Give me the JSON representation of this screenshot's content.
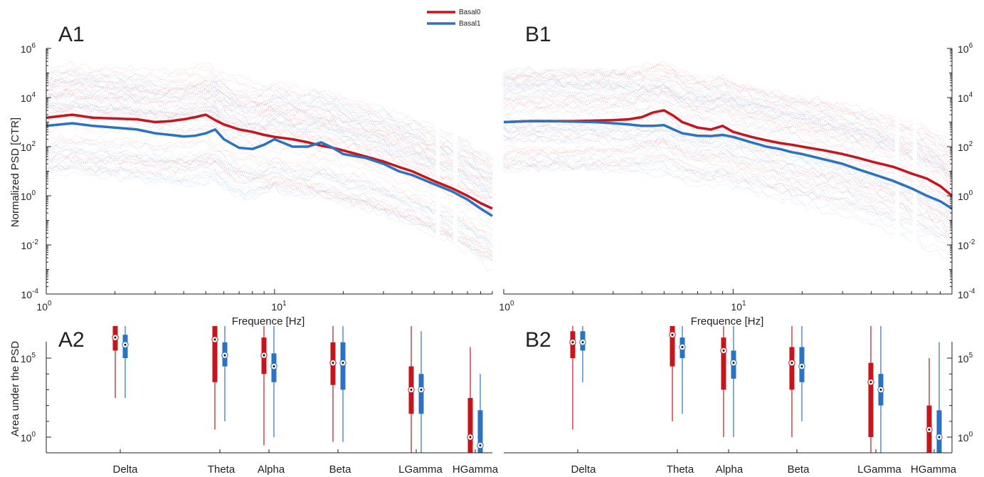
{
  "legend": [
    {
      "name": "Basal0",
      "color": "#c4161c"
    },
    {
      "name": "Basal1",
      "color": "#2b72c0"
    }
  ],
  "panels": {
    "A1": "A1",
    "B1": "B1",
    "A2": "A2",
    "B2": "B2"
  },
  "labels": {
    "psd_ylabel": "Normalized PSD [CTR]",
    "xlabel": "Frequence [Hz]",
    "area_ylabel": "Area under the PSD"
  },
  "ticks": {
    "psd_y": [
      {
        "base": "10",
        "exp": "6"
      },
      {
        "base": "10",
        "exp": "4"
      },
      {
        "base": "10",
        "exp": "2"
      },
      {
        "base": "10",
        "exp": "0"
      },
      {
        "base": "10",
        "exp": "-2"
      },
      {
        "base": "10",
        "exp": "-4"
      }
    ],
    "psd_x": [
      {
        "base": "10",
        "exp": "0"
      },
      {
        "base": "10",
        "exp": "1"
      }
    ],
    "area_y": [
      {
        "base": "10",
        "exp": "5"
      },
      {
        "base": "10",
        "exp": "0"
      }
    ]
  },
  "colors": {
    "basal0": "#c4161c",
    "basal1": "#2b72c0",
    "basal0_light": "#f2a0a0",
    "basal1_light": "#9fc0e8"
  },
  "chart_data": [
    {
      "panel": "A1",
      "type": "line",
      "xlabel": "Frequence [Hz]",
      "ylabel": "Normalized PSD [CTR]",
      "xscale": "log",
      "yscale": "log",
      "xlim": [
        1,
        90
      ],
      "ylim": [
        0.0001,
        1000000
      ],
      "legend_position": "top-center",
      "series": [
        {
          "name": "Basal0",
          "x": [
            1,
            1.3,
            1.6,
            2,
            2.5,
            3,
            3.5,
            4,
            4.5,
            5,
            5.5,
            6,
            7,
            8,
            9,
            10,
            12,
            14,
            16,
            18,
            20,
            25,
            30,
            35,
            40,
            50,
            60,
            70,
            80,
            90
          ],
          "y": [
            1500,
            2000,
            1500,
            1400,
            1300,
            1000,
            1100,
            1300,
            1600,
            2000,
            1200,
            800,
            500,
            400,
            300,
            250,
            200,
            150,
            110,
            90,
            70,
            40,
            25,
            15,
            10,
            4,
            2,
            1,
            0.5,
            0.3
          ]
        },
        {
          "name": "Basal1",
          "x": [
            1,
            1.3,
            1.6,
            2,
            2.5,
            3,
            3.5,
            4,
            4.5,
            5,
            5.5,
            6,
            7,
            8,
            9,
            10,
            12,
            14,
            16,
            18,
            20,
            25,
            30,
            35,
            40,
            50,
            60,
            70,
            80,
            90
          ],
          "y": [
            700,
            900,
            700,
            600,
            500,
            350,
            300,
            260,
            280,
            350,
            500,
            200,
            90,
            80,
            120,
            200,
            100,
            100,
            150,
            90,
            50,
            35,
            20,
            10,
            7,
            3,
            1.5,
            0.7,
            0.3,
            0.15
          ]
        }
      ]
    },
    {
      "panel": "B1",
      "type": "line",
      "xlabel": "Frequence [Hz]",
      "ylabel": "",
      "xscale": "log",
      "yscale": "log",
      "xlim": [
        1,
        90
      ],
      "ylim": [
        0.0001,
        1000000
      ],
      "series": [
        {
          "name": "Basal0",
          "x": [
            1,
            1.3,
            1.6,
            2,
            2.5,
            3,
            3.5,
            4,
            4.5,
            5,
            5.5,
            6,
            7,
            8,
            9,
            10,
            12,
            14,
            16,
            18,
            20,
            25,
            30,
            35,
            40,
            50,
            60,
            70,
            80,
            90
          ],
          "y": [
            1000,
            1100,
            1100,
            1100,
            1150,
            1200,
            1300,
            1600,
            2500,
            3000,
            1800,
            1000,
            600,
            500,
            700,
            400,
            250,
            180,
            140,
            120,
            100,
            70,
            50,
            35,
            25,
            15,
            8,
            5,
            2.5,
            1
          ]
        },
        {
          "name": "Basal1",
          "x": [
            1,
            1.3,
            1.6,
            2,
            2.5,
            3,
            3.5,
            4,
            4.5,
            5,
            5.5,
            6,
            7,
            8,
            9,
            10,
            12,
            14,
            16,
            18,
            20,
            25,
            30,
            35,
            40,
            50,
            60,
            70,
            80,
            90
          ],
          "y": [
            1000,
            1100,
            1100,
            1050,
            1000,
            900,
            800,
            700,
            700,
            750,
            500,
            350,
            280,
            270,
            300,
            250,
            150,
            100,
            80,
            60,
            50,
            30,
            20,
            12,
            8,
            4,
            2,
            1,
            0.6,
            0.3
          ]
        }
      ]
    },
    {
      "panel": "A2",
      "type": "box",
      "ylabel": "Area under the PSD",
      "yscale": "log",
      "categories": [
        "Delta",
        "Theta",
        "Alpha",
        "Beta",
        "LGamma",
        "HGamma"
      ],
      "series": [
        {
          "name": "Basal0",
          "stats": [
            {
              "min": 300,
              "q1": 300000,
              "median": 2000000,
              "q3": 20000000,
              "max": 15000000000
            },
            {
              "min": 3,
              "q1": 3000,
              "median": 1500000,
              "q3": 25000000,
              "max": 15000000000
            },
            {
              "min": 0.3,
              "q1": 10000,
              "median": 150000,
              "q3": 2000000,
              "max": 500000000
            },
            {
              "min": 0.5,
              "q1": 2000,
              "median": 50000,
              "q3": 1000000,
              "max": 200000000
            },
            {
              "min": 0.005,
              "q1": 30,
              "median": 1000,
              "q3": 30000,
              "max": 30000000
            },
            {
              "min": 0.003,
              "q1": 0.03,
              "median": 1,
              "q3": 300,
              "max": 500000
            }
          ]
        },
        {
          "name": "Basal1",
          "stats": [
            {
              "min": 300,
              "q1": 100000,
              "median": 700000,
              "q3": 3000000,
              "max": 200000000
            },
            {
              "min": 10,
              "q1": 30000,
              "median": 150000,
              "q3": 1000000,
              "max": 300000000
            },
            {
              "min": 1,
              "q1": 3000,
              "median": 30000,
              "q3": 200000,
              "max": 100000000
            },
            {
              "min": 0.5,
              "q1": 1000,
              "median": 50000,
              "q3": 1000000,
              "max": 30000000
            },
            {
              "min": 0.005,
              "q1": 30,
              "median": 1000,
              "q3": 10000,
              "max": 5000000
            },
            {
              "min": 0.003,
              "q1": 0.003,
              "median": 0.3,
              "q3": 50,
              "max": 10000
            }
          ]
        }
      ]
    },
    {
      "panel": "B2",
      "type": "box",
      "ylabel": "",
      "yscale": "log",
      "categories": [
        "Delta",
        "Theta",
        "Alpha",
        "Beta",
        "LGamma",
        "HGamma"
      ],
      "series": [
        {
          "name": "Basal0",
          "stats": [
            {
              "min": 3,
              "q1": 100000,
              "median": 1000000,
              "q3": 5000000,
              "max": 500000000
            },
            {
              "min": 10,
              "q1": 30000,
              "median": 3000000,
              "q3": 20000000,
              "max": 2000000000
            },
            {
              "min": 1,
              "q1": 1000,
              "median": 300000,
              "q3": 2000000,
              "max": 200000000
            },
            {
              "min": 1,
              "q1": 1000,
              "median": 50000,
              "q3": 500000,
              "max": 100000000
            },
            {
              "min": 0.01,
              "q1": 1,
              "median": 3000,
              "q3": 50000,
              "max": 30000000
            },
            {
              "min": 0.01,
              "q1": 0.03,
              "median": 3,
              "q3": 100,
              "max": 100000
            }
          ]
        },
        {
          "name": "Basal1",
          "stats": [
            {
              "min": 3000,
              "q1": 300000,
              "median": 1000000,
              "q3": 5000000,
              "max": 1000000000
            },
            {
              "min": 30,
              "q1": 100000,
              "median": 500000,
              "q3": 2000000,
              "max": 3000000000
            },
            {
              "min": 1,
              "q1": 5000,
              "median": 50000,
              "q3": 300000,
              "max": 300000000
            },
            {
              "min": 10,
              "q1": 3000,
              "median": 30000,
              "q3": 500000,
              "max": 200000000
            },
            {
              "min": 0.005,
              "q1": 100,
              "median": 1000,
              "q3": 10000,
              "max": 30000000
            },
            {
              "min": 0.005,
              "q1": 0.1,
              "median": 1,
              "q3": 50,
              "max": 1000000
            }
          ]
        }
      ]
    }
  ]
}
